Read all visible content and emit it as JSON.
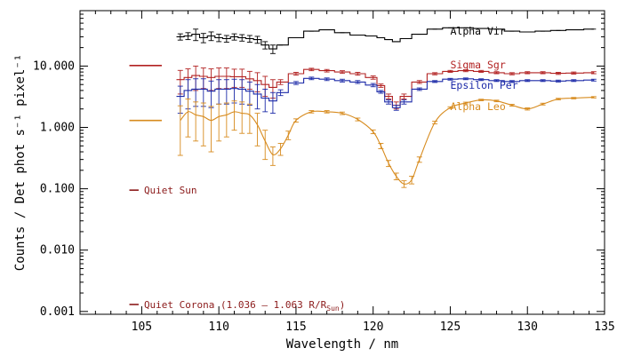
{
  "chart_data": {
    "type": "line",
    "title": "",
    "xlabel": "Wavelength / nm",
    "ylabel": "Counts / Det phot s⁻¹ pixel⁻¹",
    "xlim": [
      101,
      135
    ],
    "ylim": [
      0.0009,
      80
    ],
    "yscale": "log",
    "grid": false,
    "x_ticks": [
      105,
      110,
      115,
      120,
      125,
      130,
      135
    ],
    "x_tick_labels": [
      "105",
      "110",
      "115",
      "120",
      "125",
      "130",
      "135"
    ],
    "y_ticks": [
      0.001,
      0.01,
      0.1,
      1,
      10
    ],
    "y_tick_labels": [
      "0.001",
      "0.010",
      "0.100",
      "1.000",
      "10.000"
    ],
    "series": [
      {
        "name": "Alpha Vir",
        "style": "step",
        "color": "#000000",
        "x": [
          107.5,
          108,
          108.5,
          109,
          109.5,
          110,
          110.5,
          111,
          111.5,
          112,
          112.5,
          113,
          113.5,
          114,
          115,
          116,
          117,
          118,
          119,
          120,
          120.5,
          121,
          121.5,
          122,
          123,
          124,
          125,
          126,
          127,
          128,
          129,
          130,
          131,
          132,
          133,
          134.3
        ],
        "y": [
          30,
          31,
          33,
          29,
          31,
          29,
          28,
          30,
          29,
          28,
          27,
          22,
          19,
          22,
          29,
          37,
          39,
          35,
          32,
          31,
          29,
          27,
          25,
          28,
          33,
          40,
          42,
          42,
          41,
          40,
          37,
          36,
          37,
          38,
          39,
          40
        ],
        "errors": [
          3.5,
          4,
          7,
          5,
          5,
          4,
          3.5,
          3.5,
          3.5,
          3.5,
          3.5,
          3,
          3,
          0,
          0,
          0,
          0,
          0,
          0,
          0,
          0,
          0,
          0,
          0,
          0,
          0,
          0,
          0,
          0,
          0,
          0,
          0,
          0,
          0,
          0,
          0
        ]
      },
      {
        "name": "Sigma Sgr",
        "style": "step",
        "color": "#b22222",
        "x": [
          107.5,
          108,
          108.5,
          109,
          109.5,
          110,
          110.5,
          111,
          111.5,
          112,
          112.5,
          113,
          113.5,
          114,
          115,
          116,
          117,
          118,
          119,
          120,
          120.5,
          121,
          121.5,
          122,
          123,
          124,
          125,
          126,
          127,
          128,
          129,
          130,
          131,
          132,
          133,
          134.3
        ],
        "y": [
          6,
          6.5,
          7,
          6.8,
          6.5,
          6.8,
          6.8,
          6.7,
          6.7,
          6.2,
          5.8,
          5,
          4.5,
          5.5,
          7.5,
          8.8,
          8.4,
          8,
          7.5,
          6.5,
          4.8,
          3.2,
          2.3,
          3.2,
          5.5,
          7.5,
          8.2,
          8.4,
          8.2,
          7.8,
          7.5,
          7.8,
          7.8,
          7.6,
          7.7,
          7.8
        ],
        "errors": [
          2.5,
          2.5,
          3,
          2.5,
          2.5,
          2.5,
          2.5,
          2.2,
          2.2,
          2,
          2,
          1.8,
          1.5,
          0.5,
          0.4,
          0.4,
          0.4,
          0.4,
          0.4,
          0.4,
          0.3,
          0.3,
          0.3,
          0.3,
          0.3,
          0.3,
          0.3,
          0.3,
          0.3,
          0.3,
          0.3,
          0.3,
          0.3,
          0.3,
          0.3,
          0.3
        ]
      },
      {
        "name": "Epsilon Per",
        "style": "step",
        "color": "#1c2aa8",
        "x": [
          107.5,
          108,
          108.5,
          109,
          109.5,
          110,
          110.5,
          111,
          111.5,
          112,
          112.5,
          113,
          113.5,
          114,
          115,
          116,
          117,
          118,
          119,
          120,
          120.5,
          121,
          121.5,
          122,
          123,
          124,
          125,
          126,
          127,
          128,
          129,
          130,
          131,
          132,
          133,
          134.3
        ],
        "y": [
          3.2,
          4,
          4.2,
          4.2,
          3.9,
          4.2,
          4.2,
          4.3,
          4.2,
          3.9,
          3.5,
          3,
          2.7,
          3.7,
          5.3,
          6.3,
          6.1,
          5.8,
          5.5,
          4.9,
          3.8,
          2.6,
          2.1,
          2.6,
          4.2,
          5.6,
          6.1,
          6.2,
          6,
          5.8,
          5.6,
          5.8,
          5.8,
          5.7,
          5.8,
          5.9
        ],
        "errors": [
          1.5,
          2,
          2,
          2,
          1.8,
          1.8,
          1.8,
          1.8,
          1.8,
          1.6,
          1.5,
          1.2,
          1,
          0.4,
          0.3,
          0.3,
          0.3,
          0.3,
          0.3,
          0.3,
          0.2,
          0.2,
          0.2,
          0.2,
          0.2,
          0.2,
          0.2,
          0.2,
          0.2,
          0.2,
          0.2,
          0.2,
          0.2,
          0.2,
          0.2,
          0.2
        ]
      },
      {
        "name": "Alpha Leo",
        "style": "smooth",
        "color": "#d78b1e",
        "x": [
          107.5,
          108,
          108.5,
          109,
          109.5,
          110,
          110.5,
          111,
          111.5,
          112,
          112.5,
          113,
          113.5,
          114,
          114.5,
          115,
          116,
          117,
          118,
          119,
          120,
          120.5,
          121,
          121.5,
          122,
          122.5,
          123,
          124,
          125,
          126,
          127,
          128,
          129,
          130,
          131,
          132,
          133,
          134.3
        ],
        "y": [
          1.3,
          1.8,
          1.6,
          1.5,
          1.3,
          1.5,
          1.6,
          1.8,
          1.7,
          1.6,
          1.1,
          0.6,
          0.36,
          0.45,
          0.75,
          1.3,
          1.8,
          1.8,
          1.7,
          1.35,
          0.85,
          0.5,
          0.26,
          0.16,
          0.12,
          0.14,
          0.3,
          1.2,
          2.1,
          2.5,
          2.8,
          2.7,
          2.3,
          2.0,
          2.4,
          2.9,
          3.0,
          3.1
        ],
        "errors": [
          0.95,
          1.1,
          1,
          1,
          0.9,
          0.9,
          0.9,
          0.9,
          0.9,
          0.8,
          0.6,
          0.3,
          0.12,
          0.1,
          0.12,
          0.08,
          0.08,
          0.08,
          0.08,
          0.07,
          0.06,
          0.05,
          0.03,
          0.02,
          0.015,
          0.02,
          0.03,
          0.06,
          0.07,
          0.08,
          0.08,
          0.08,
          0.08,
          0.08,
          0.08,
          0.08,
          0.08,
          0.08
        ]
      }
    ],
    "reference_levels": [
      {
        "label": "Quiet Sun",
        "x_start": 104.2,
        "x_end": 104.8,
        "y": 0.095,
        "color": "#8b1a1a"
      },
      {
        "label": "Quiet Corona (1.036 – 1.063 R/R",
        "subscript": "Sun",
        "suffix": ")",
        "x_start": 104.2,
        "x_end": 104.8,
        "y": 0.0013,
        "color": "#8b1a1a"
      },
      {
        "label": "",
        "x_start": 104.2,
        "x_end": 106.3,
        "y": 10.2,
        "color": "#b22222"
      },
      {
        "label": "",
        "x_start": 104.2,
        "x_end": 106.3,
        "y": 1.3,
        "color": "#d78b1e"
      }
    ],
    "series_label_positions": [
      {
        "series": "Alpha Vir",
        "x": 125,
        "y": 37
      },
      {
        "series": "Sigma Sgr",
        "x": 125,
        "y": 10.4
      },
      {
        "series": "Epsilon Per",
        "x": 125,
        "y": 4.9
      },
      {
        "series": "Alpha Leo",
        "x": 125,
        "y": 2.2
      }
    ]
  }
}
